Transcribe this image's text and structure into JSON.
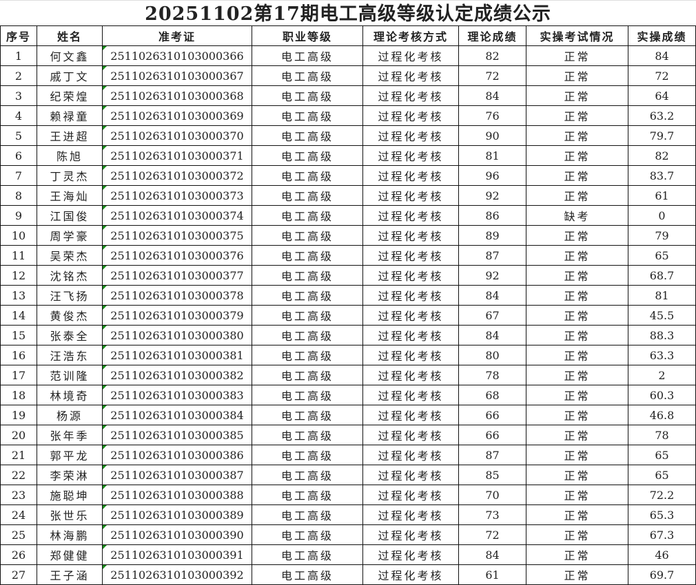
{
  "title": "20251102第17期电工高级等级认定成绩公示",
  "columns": [
    "序号",
    "姓名",
    "准考证",
    "职业等级",
    "理论考核方式",
    "理论成绩",
    "实操考试情况",
    "实操成绩"
  ],
  "rows": [
    [
      "1",
      "何文鑫",
      "2511026310103000366",
      "电工高级",
      "过程化考核",
      "82",
      "正常",
      "84"
    ],
    [
      "2",
      "戚丁文",
      "2511026310103000367",
      "电工高级",
      "过程化考核",
      "72",
      "正常",
      "72"
    ],
    [
      "3",
      "纪荣煌",
      "2511026310103000368",
      "电工高级",
      "过程化考核",
      "84",
      "正常",
      "64"
    ],
    [
      "4",
      "赖禄童",
      "2511026310103000369",
      "电工高级",
      "过程化考核",
      "76",
      "正常",
      "63.2"
    ],
    [
      "5",
      "王进超",
      "2511026310103000370",
      "电工高级",
      "过程化考核",
      "90",
      "正常",
      "79.7"
    ],
    [
      "6",
      "陈旭",
      "2511026310103000371",
      "电工高级",
      "过程化考核",
      "81",
      "正常",
      "82"
    ],
    [
      "7",
      "丁灵杰",
      "2511026310103000372",
      "电工高级",
      "过程化考核",
      "96",
      "正常",
      "83.7"
    ],
    [
      "8",
      "王海灿",
      "2511026310103000373",
      "电工高级",
      "过程化考核",
      "92",
      "正常",
      "61"
    ],
    [
      "9",
      "江国俊",
      "2511026310103000374",
      "电工高级",
      "过程化考核",
      "86",
      "缺考",
      "0"
    ],
    [
      "10",
      "周学豪",
      "2511026310103000375",
      "电工高级",
      "过程化考核",
      "89",
      "正常",
      "79"
    ],
    [
      "11",
      "吴荣杰",
      "2511026310103000376",
      "电工高级",
      "过程化考核",
      "87",
      "正常",
      "65"
    ],
    [
      "12",
      "沈铭杰",
      "2511026310103000377",
      "电工高级",
      "过程化考核",
      "92",
      "正常",
      "68.7"
    ],
    [
      "13",
      "汪飞扬",
      "2511026310103000378",
      "电工高级",
      "过程化考核",
      "84",
      "正常",
      "81"
    ],
    [
      "14",
      "黄俊杰",
      "2511026310103000379",
      "电工高级",
      "过程化考核",
      "67",
      "正常",
      "45.5"
    ],
    [
      "15",
      "张泰全",
      "2511026310103000380",
      "电工高级",
      "过程化考核",
      "84",
      "正常",
      "88.3"
    ],
    [
      "16",
      "汪浩东",
      "2511026310103000381",
      "电工高级",
      "过程化考核",
      "80",
      "正常",
      "63.3"
    ],
    [
      "17",
      "范训隆",
      "2511026310103000382",
      "电工高级",
      "过程化考核",
      "78",
      "正常",
      "2"
    ],
    [
      "18",
      "林境奇",
      "2511026310103000383",
      "电工高级",
      "过程化考核",
      "68",
      "正常",
      "60.3"
    ],
    [
      "19",
      "杨源",
      "2511026310103000384",
      "电工高级",
      "过程化考核",
      "66",
      "正常",
      "46.8"
    ],
    [
      "20",
      "张年季",
      "2511026310103000385",
      "电工高级",
      "过程化考核",
      "66",
      "正常",
      "78"
    ],
    [
      "21",
      "郭平龙",
      "2511026310103000386",
      "电工高级",
      "过程化考核",
      "87",
      "正常",
      "65"
    ],
    [
      "22",
      "李荣淋",
      "2511026310103000387",
      "电工高级",
      "过程化考核",
      "85",
      "正常",
      "65"
    ],
    [
      "23",
      "施聪坤",
      "2511026310103000388",
      "电工高级",
      "过程化考核",
      "70",
      "正常",
      "72.2"
    ],
    [
      "24",
      "张世乐",
      "2511026310103000389",
      "电工高级",
      "过程化考核",
      "73",
      "正常",
      "65.3"
    ],
    [
      "25",
      "林海鹏",
      "2511026310103000390",
      "电工高级",
      "过程化考核",
      "72",
      "正常",
      "67.3"
    ],
    [
      "26",
      "郑健健",
      "2511026310103000391",
      "电工高级",
      "过程化考核",
      "84",
      "正常",
      "46"
    ],
    [
      "27",
      "王子涵",
      "2511026310103000392",
      "电工高级",
      "过程化考核",
      "61",
      "正常",
      "69.7"
    ]
  ]
}
